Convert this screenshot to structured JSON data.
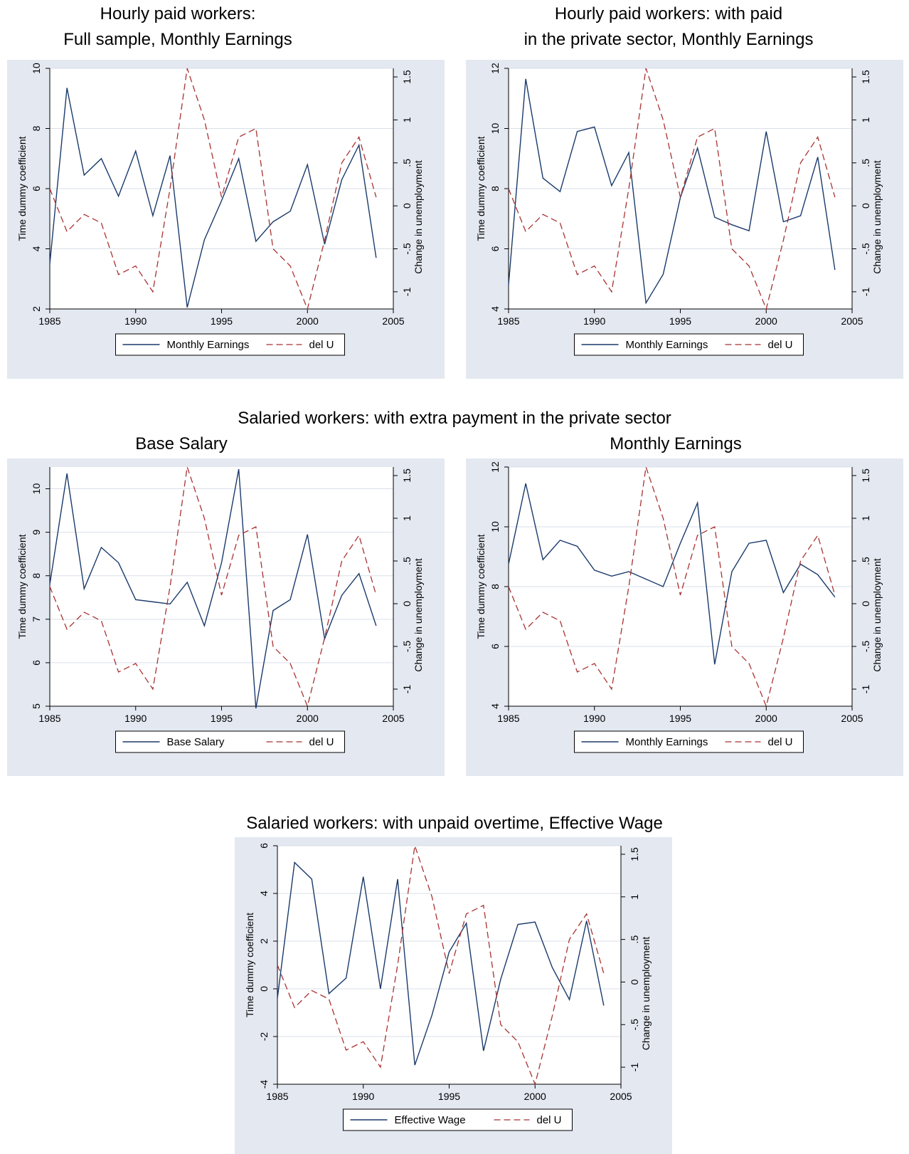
{
  "titles": {
    "p1_line1": "Hourly paid workers:",
    "p1_line2": "Full sample, Monthly Earnings",
    "p2_line1": "Hourly paid workers: with paid",
    "p2_line2": "in the private sector, Monthly Earnings",
    "section": "Salaried workers: with extra payment in the private sector",
    "p3": "Base Salary",
    "p4": "Monthly Earnings",
    "p5": "Salaried workers: with unpaid overtime, Effective Wage"
  },
  "colors": {
    "panel_bg": "#e3e8f1",
    "series_main": "#1a3a6b",
    "series_delu": "#a83232",
    "grid": "#d9dfe9"
  },
  "chart_data": [
    {
      "type": "line",
      "x": [
        1985,
        1986,
        1987,
        1988,
        1989,
        1990,
        1991,
        1992,
        1993,
        1994,
        1995,
        1996,
        1997,
        1998,
        1999,
        2000,
        2001,
        2002,
        2003,
        2004
      ],
      "xlim": [
        1985,
        2005
      ],
      "xticks": [
        1985,
        1990,
        1995,
        2000,
        2005
      ],
      "ylabel": "Time dummy coefficient",
      "ylim": [
        2,
        10
      ],
      "yticks": [
        2,
        4,
        6,
        8,
        10
      ],
      "y2label": "Change in unemployment",
      "y2lim": [
        -1.2,
        1.6
      ],
      "y2ticks": [
        -1,
        -0.5,
        0,
        0.5,
        1,
        1.5
      ],
      "y2ticklabels": [
        "-1",
        "-.5",
        "0",
        ".5",
        "1",
        "1.5"
      ],
      "series": [
        {
          "name": "Monthly Earnings",
          "axis": "left",
          "style": "solid",
          "values": [
            3.5,
            9.35,
            6.45,
            7.0,
            5.75,
            7.25,
            5.1,
            7.1,
            2.05,
            4.3,
            5.6,
            7.0,
            4.25,
            4.9,
            5.25,
            6.8,
            4.15,
            6.3,
            7.45,
            3.7
          ]
        },
        {
          "name": "del U",
          "axis": "right",
          "style": "dashed",
          "values": [
            0.2,
            -0.3,
            -0.1,
            -0.2,
            -0.8,
            -0.7,
            -1.0,
            0.2,
            1.6,
            1.0,
            0.1,
            0.8,
            0.9,
            -0.5,
            -0.7,
            -1.2,
            -0.4,
            0.5,
            0.8,
            0.1
          ]
        }
      ]
    },
    {
      "type": "line",
      "x": [
        1985,
        1986,
        1987,
        1988,
        1989,
        1990,
        1991,
        1992,
        1993,
        1994,
        1995,
        1996,
        1997,
        1998,
        1999,
        2000,
        2001,
        2002,
        2003,
        2004
      ],
      "xlim": [
        1985,
        2005
      ],
      "xticks": [
        1985,
        1990,
        1995,
        2000,
        2005
      ],
      "ylabel": "Time dummy coefficient",
      "ylim": [
        4,
        12
      ],
      "yticks": [
        4,
        6,
        8,
        10,
        12
      ],
      "y2label": "Change in unemployment",
      "y2lim": [
        -1.2,
        1.6
      ],
      "y2ticks": [
        -1,
        -0.5,
        0,
        0.5,
        1,
        1.5
      ],
      "y2ticklabels": [
        "-1",
        "-.5",
        "0",
        ".5",
        "1",
        "1.5"
      ],
      "series": [
        {
          "name": "Monthly Earnings",
          "axis": "left",
          "style": "solid",
          "values": [
            4.8,
            11.65,
            8.35,
            7.9,
            9.9,
            10.05,
            8.1,
            9.2,
            4.2,
            5.15,
            7.7,
            9.35,
            7.05,
            6.8,
            6.6,
            9.9,
            6.9,
            7.1,
            9.05,
            5.3
          ]
        },
        {
          "name": "del U",
          "axis": "right",
          "style": "dashed",
          "values": [
            0.2,
            -0.3,
            -0.1,
            -0.2,
            -0.8,
            -0.7,
            -1.0,
            0.2,
            1.6,
            1.0,
            0.1,
            0.8,
            0.9,
            -0.5,
            -0.7,
            -1.2,
            -0.4,
            0.5,
            0.8,
            0.1
          ]
        }
      ]
    },
    {
      "type": "line",
      "x": [
        1985,
        1986,
        1987,
        1988,
        1989,
        1990,
        1991,
        1992,
        1993,
        1994,
        1995,
        1996,
        1997,
        1998,
        1999,
        2000,
        2001,
        2002,
        2003,
        2004
      ],
      "xlim": [
        1985,
        2005
      ],
      "xticks": [
        1985,
        1990,
        1995,
        2000,
        2005
      ],
      "ylabel": "Time dummy coefficient",
      "ylim": [
        5,
        10.5
      ],
      "yticks": [
        5,
        6,
        7,
        8,
        9,
        10
      ],
      "y2label": "Change in unemployment",
      "y2lim": [
        -1.2,
        1.6
      ],
      "y2ticks": [
        -1,
        -0.5,
        0,
        0.5,
        1,
        1.5
      ],
      "y2ticklabels": [
        "-1",
        "-.5",
        "0",
        ".5",
        "1",
        "1.5"
      ],
      "series": [
        {
          "name": "Base Salary",
          "axis": "left",
          "style": "solid",
          "values": [
            7.8,
            10.35,
            7.7,
            8.65,
            8.3,
            7.45,
            7.4,
            7.35,
            7.85,
            6.85,
            8.3,
            10.45,
            4.95,
            7.2,
            7.45,
            8.95,
            6.55,
            7.55,
            8.05,
            6.85
          ]
        },
        {
          "name": "del U",
          "axis": "right",
          "style": "dashed",
          "values": [
            0.2,
            -0.3,
            -0.1,
            -0.2,
            -0.8,
            -0.7,
            -1.0,
            0.2,
            1.6,
            1.0,
            0.1,
            0.8,
            0.9,
            -0.5,
            -0.7,
            -1.2,
            -0.4,
            0.5,
            0.8,
            0.1
          ]
        }
      ]
    },
    {
      "type": "line",
      "x": [
        1985,
        1986,
        1987,
        1988,
        1989,
        1990,
        1991,
        1992,
        1993,
        1994,
        1995,
        1996,
        1997,
        1998,
        1999,
        2000,
        2001,
        2002,
        2003,
        2004
      ],
      "xlim": [
        1985,
        2005
      ],
      "xticks": [
        1985,
        1990,
        1995,
        2000,
        2005
      ],
      "ylabel": "Time dummy coefficient",
      "ylim": [
        4,
        12
      ],
      "yticks": [
        4,
        6,
        8,
        10,
        12
      ],
      "y2label": "Change in unemployment",
      "y2lim": [
        -1.2,
        1.6
      ],
      "y2ticks": [
        -1,
        -0.5,
        0,
        0.5,
        1,
        1.5
      ],
      "y2ticklabels": [
        "-1",
        "-.5",
        "0",
        ".5",
        "1",
        "1.5"
      ],
      "series": [
        {
          "name": "Monthly Earnings",
          "axis": "left",
          "style": "solid",
          "values": [
            8.75,
            11.45,
            8.9,
            9.55,
            9.35,
            8.55,
            8.35,
            8.5,
            8.25,
            8.0,
            9.45,
            10.8,
            5.4,
            8.5,
            9.45,
            9.55,
            7.8,
            8.75,
            8.4,
            7.65
          ]
        },
        {
          "name": "del U",
          "axis": "right",
          "style": "dashed",
          "values": [
            0.2,
            -0.3,
            -0.1,
            -0.2,
            -0.8,
            -0.7,
            -1.0,
            0.2,
            1.6,
            1.0,
            0.1,
            0.8,
            0.9,
            -0.5,
            -0.7,
            -1.2,
            -0.4,
            0.5,
            0.8,
            0.1
          ]
        }
      ]
    },
    {
      "type": "line",
      "x": [
        1985,
        1986,
        1987,
        1988,
        1989,
        1990,
        1991,
        1992,
        1993,
        1994,
        1995,
        1996,
        1997,
        1998,
        1999,
        2000,
        2001,
        2002,
        2003,
        2004
      ],
      "xlim": [
        1985,
        2005
      ],
      "xticks": [
        1985,
        1990,
        1995,
        2000,
        2005
      ],
      "ylabel": "Time dummy coefficient",
      "ylim": [
        -4,
        6
      ],
      "yticks": [
        -4,
        -2,
        0,
        2,
        4,
        6
      ],
      "y2label": "Change in unemployment",
      "y2lim": [
        -1.2,
        1.6
      ],
      "y2ticks": [
        -1,
        -0.5,
        0,
        0.5,
        1,
        1.5
      ],
      "y2ticklabels": [
        "-1",
        "-.5",
        "0",
        ".5",
        "1",
        "1.5"
      ],
      "series": [
        {
          "name": "Effective Wage",
          "axis": "left",
          "style": "solid",
          "values": [
            -0.4,
            5.3,
            4.6,
            -0.2,
            0.45,
            4.7,
            0.0,
            4.6,
            -3.2,
            -1.1,
            1.55,
            2.75,
            -2.6,
            0.4,
            2.7,
            2.8,
            0.9,
            -0.45,
            2.85,
            -0.7
          ]
        },
        {
          "name": "del U",
          "axis": "right",
          "style": "dashed",
          "values": [
            0.2,
            -0.3,
            -0.1,
            -0.2,
            -0.8,
            -0.7,
            -1.0,
            0.2,
            1.6,
            1.0,
            0.1,
            0.8,
            0.9,
            -0.5,
            -0.7,
            -1.2,
            -0.4,
            0.5,
            0.8,
            0.1
          ]
        }
      ]
    }
  ]
}
